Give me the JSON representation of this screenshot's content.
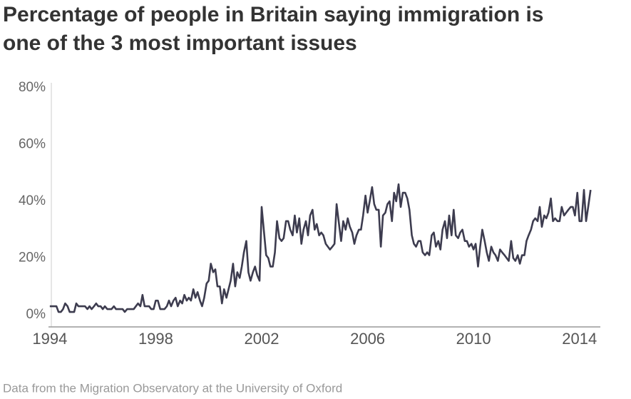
{
  "chart_data": {
    "type": "line",
    "title_lines": [
      "Percentage of people in Britain saying immigration is",
      "one of the 3 most important issues"
    ],
    "source": "Data from the Migration Observatory at the University of Oxford",
    "x": [
      1994,
      1994.08,
      1994.17,
      1994.25,
      1994.33,
      1994.42,
      1994.5,
      1994.58,
      1994.67,
      1994.75,
      1994.83,
      1994.92,
      1995,
      1995.08,
      1995.17,
      1995.25,
      1995.33,
      1995.42,
      1995.5,
      1995.58,
      1995.67,
      1995.75,
      1995.83,
      1995.92,
      1996,
      1996.08,
      1996.17,
      1996.25,
      1996.33,
      1996.42,
      1996.5,
      1996.58,
      1996.67,
      1996.75,
      1996.83,
      1996.92,
      1997,
      1997.08,
      1997.17,
      1997.25,
      1997.33,
      1997.42,
      1997.5,
      1997.58,
      1997.67,
      1997.75,
      1997.83,
      1997.92,
      1998,
      1998.08,
      1998.17,
      1998.25,
      1998.33,
      1998.42,
      1998.5,
      1998.58,
      1998.67,
      1998.75,
      1998.83,
      1998.92,
      1999,
      1999.08,
      1999.17,
      1999.25,
      1999.33,
      1999.42,
      1999.5,
      1999.58,
      1999.67,
      1999.75,
      1999.83,
      1999.92,
      2000,
      2000.08,
      2000.17,
      2000.25,
      2000.33,
      2000.42,
      2000.5,
      2000.58,
      2000.67,
      2000.75,
      2000.83,
      2000.92,
      2001,
      2001.08,
      2001.17,
      2001.25,
      2001.33,
      2001.42,
      2001.5,
      2001.58,
      2001.67,
      2001.75,
      2001.83,
      2001.92,
      2002,
      2002.08,
      2002.17,
      2002.25,
      2002.33,
      2002.42,
      2002.5,
      2002.58,
      2002.67,
      2002.75,
      2002.83,
      2002.92,
      2003,
      2003.08,
      2003.17,
      2003.25,
      2003.33,
      2003.42,
      2003.5,
      2003.58,
      2003.67,
      2003.75,
      2003.83,
      2003.92,
      2004,
      2004.08,
      2004.17,
      2004.25,
      2004.33,
      2004.42,
      2004.5,
      2004.58,
      2004.67,
      2004.75,
      2004.83,
      2004.92,
      2005,
      2005.08,
      2005.17,
      2005.25,
      2005.33,
      2005.42,
      2005.5,
      2005.58,
      2005.67,
      2005.75,
      2005.83,
      2005.92,
      2006,
      2006.08,
      2006.17,
      2006.25,
      2006.33,
      2006.42,
      2006.5,
      2006.58,
      2006.67,
      2006.75,
      2006.83,
      2006.92,
      2007,
      2007.08,
      2007.17,
      2007.25,
      2007.33,
      2007.42,
      2007.5,
      2007.58,
      2007.67,
      2007.75,
      2007.83,
      2007.92,
      2008,
      2008.08,
      2008.17,
      2008.25,
      2008.33,
      2008.42,
      2008.5,
      2008.58,
      2008.67,
      2008.75,
      2008.83,
      2008.92,
      2009,
      2009.08,
      2009.17,
      2009.25,
      2009.33,
      2009.42,
      2009.5,
      2009.58,
      2009.67,
      2009.75,
      2009.83,
      2009.92,
      2010,
      2010.08,
      2010.17,
      2010.25,
      2010.33,
      2010.42,
      2010.5,
      2010.58,
      2010.67,
      2010.75,
      2010.83,
      2010.92,
      2011,
      2011.08,
      2011.17,
      2011.25,
      2011.33,
      2011.42,
      2011.5,
      2011.58,
      2011.67,
      2011.75,
      2011.83,
      2011.92,
      2012,
      2012.08,
      2012.17,
      2012.25,
      2012.33,
      2012.42,
      2012.5,
      2012.58,
      2012.67,
      2012.75,
      2012.83,
      2012.92,
      2013,
      2013.08,
      2013.17,
      2013.25,
      2013.33,
      2013.42,
      2013.5,
      2013.58,
      2013.67,
      2013.75,
      2013.83,
      2013.92,
      2014,
      2014.08,
      2014.17,
      2014.25,
      2014.33,
      2014.42
    ],
    "values": [
      3,
      3,
      3,
      3,
      1,
      1,
      2,
      4,
      3,
      1,
      1,
      1,
      4,
      3,
      3,
      3,
      3,
      2,
      3,
      2,
      3,
      4,
      3,
      3,
      2,
      3,
      2,
      2,
      2,
      3,
      2,
      2,
      2,
      2,
      1,
      2,
      2,
      2,
      2,
      3,
      4,
      3,
      7,
      3,
      3,
      3,
      2,
      2,
      5,
      5,
      2,
      2,
      2,
      3,
      5,
      3,
      5,
      6,
      3,
      5,
      4,
      7,
      5,
      6,
      5,
      9,
      6,
      8,
      5,
      3,
      6,
      11,
      12,
      18,
      15,
      16,
      10,
      10,
      4,
      9,
      6,
      9,
      12,
      18,
      10,
      15,
      13,
      17,
      22,
      26,
      15,
      12,
      15,
      17,
      14,
      12,
      38,
      30,
      21,
      20,
      17,
      17,
      22,
      33,
      27,
      26,
      27,
      33,
      33,
      30,
      28,
      35,
      29,
      34,
      25,
      30,
      33,
      28,
      35,
      37,
      30,
      32,
      28,
      29,
      28,
      25,
      24,
      23,
      24,
      25,
      39,
      32,
      26,
      33,
      30,
      34,
      31,
      29,
      25,
      28,
      30,
      30,
      35,
      42,
      36,
      40,
      45,
      39,
      37,
      37,
      24,
      35,
      36,
      39,
      40,
      33,
      43,
      40,
      46,
      38,
      43,
      43,
      41,
      37,
      28,
      25,
      24,
      26,
      26,
      22,
      21,
      22,
      21,
      28,
      29,
      24,
      26,
      23,
      30,
      33,
      27,
      35,
      28,
      37,
      28,
      27,
      29,
      30,
      26,
      26,
      24,
      25,
      23,
      25,
      17,
      24,
      30,
      26,
      22,
      19,
      24,
      22,
      21,
      19,
      23,
      22,
      21,
      20,
      19,
      26,
      20,
      19,
      21,
      18,
      21,
      21,
      26,
      28,
      30,
      33,
      34,
      33,
      38,
      31,
      35,
      34,
      36,
      41,
      33,
      34,
      33,
      33,
      38,
      35,
      36,
      37,
      38,
      38,
      35,
      43,
      33,
      33,
      44,
      33,
      38,
      44
    ],
    "color": "#3d3c4f",
    "xlim": [
      1993.95,
      2014.95
    ],
    "xticks": [
      1994,
      1998,
      2002,
      2006,
      2010,
      2014
    ],
    "ylim": [
      0,
      80
    ],
    "yticks": [
      {
        "value": 0,
        "label": "0%"
      },
      {
        "value": 20,
        "label": "20%"
      },
      {
        "value": 40,
        "label": "40%"
      },
      {
        "value": 60,
        "label": "60%"
      },
      {
        "value": 80,
        "label": "80%"
      }
    ]
  }
}
